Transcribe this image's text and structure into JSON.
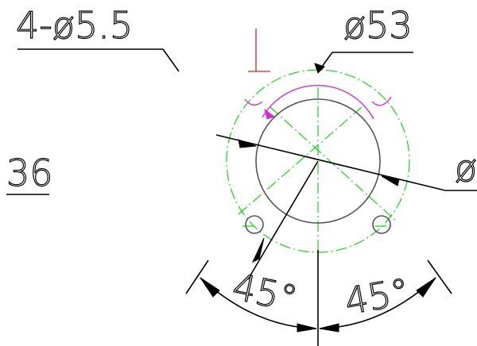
{
  "labels": {
    "holes_callout": "4-ø5.5",
    "outer_dia": "ø53",
    "radius_dim": "36",
    "inner_dia_partial": "ø",
    "angle_left": "45°",
    "angle_right": "45°"
  },
  "colors": {
    "dimension": "#000000",
    "centerline": "#19d219",
    "hidden_arc": "#cc33cc",
    "marker": "#e02020",
    "outline": "#555555"
  }
}
